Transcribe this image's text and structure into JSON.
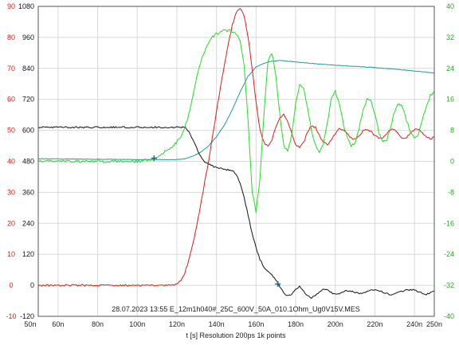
{
  "colors": {
    "red": "#e21b1b",
    "black": "#111111",
    "green": "#22dd22",
    "teal": "#1f9a9a",
    "gridline": "#d8d8d8",
    "frame": "#555555"
  },
  "chart_data": {
    "type": "line",
    "title": "",
    "annotation": "28.07.2023 13:55   E_12m1h040#_25C_600V_50A_010.1Ohm_Ug0V15V.MES",
    "xlabel": "t [s]   Resolution 200ps   1k points",
    "x_unit": "ns",
    "xlim": [
      50,
      250
    ],
    "x_ticks": [
      50,
      60,
      80,
      100,
      120,
      140,
      160,
      180,
      200,
      220,
      240,
      250
    ],
    "x_tick_labels": [
      "50n",
      "60n",
      "80n",
      "100n",
      "120n",
      "140n",
      "160n",
      "180n",
      "200n",
      "220n",
      "240n",
      "250n"
    ],
    "grid": true,
    "axes": {
      "left_red": {
        "range": [
          -10,
          90
        ],
        "ticks": [
          -10,
          0,
          10,
          20,
          30,
          40,
          50,
          60,
          70,
          80,
          90
        ],
        "tick_labels": [
          "-10",
          "0",
          "10",
          "20",
          "30",
          "40",
          "50",
          "60",
          "70",
          "80",
          "90"
        ],
        "color": "#e21b1b"
      },
      "left_black": {
        "range": [
          -120,
          1080
        ],
        "ticks": [
          -120,
          0,
          120,
          240,
          360,
          480,
          600,
          720,
          840,
          960,
          1080
        ],
        "tick_labels": [
          "-120",
          "0",
          "120",
          "240",
          "360",
          "480",
          "600",
          "720",
          "840",
          "960",
          "1080"
        ],
        "color": "#111111"
      },
      "right_green": {
        "range": [
          -40,
          40
        ],
        "ticks": [
          -40,
          -32,
          -24,
          -16,
          -8,
          0,
          8,
          16,
          24,
          32,
          40
        ],
        "tick_labels": [
          "-40",
          "-32",
          "-24",
          "-16",
          "-8",
          "0",
          "8",
          "16",
          "24",
          "32",
          "40"
        ],
        "color": "#22aa22"
      }
    },
    "series": [
      {
        "color": "#e21b1b",
        "axis": "left_red",
        "x": [
          50,
          100,
          118,
          120,
          122,
          124,
          126,
          128,
          130,
          132,
          134,
          136,
          138,
          140,
          142,
          144,
          146,
          148,
          150,
          152,
          154,
          156,
          158,
          160,
          162,
          164,
          166,
          168,
          170,
          172,
          174,
          176,
          178,
          180,
          182,
          184,
          186,
          188,
          190,
          192,
          194,
          196,
          198,
          200,
          202,
          204,
          206,
          208,
          210,
          212,
          214,
          216,
          218,
          220,
          222,
          224,
          226,
          228,
          230,
          232,
          234,
          236,
          238,
          240,
          242,
          244,
          246,
          248,
          250
        ],
        "values": [
          0,
          0,
          0,
          0.3,
          1.5,
          4,
          8,
          13,
          19,
          26,
          33,
          40,
          48,
          56,
          64,
          71,
          78,
          84,
          88,
          89.5,
          87,
          80,
          70,
          59,
          50,
          46,
          45,
          47,
          51,
          54,
          55,
          53,
          49,
          45.5,
          44.5,
          46,
          49.5,
          51.5,
          51,
          48.5,
          46,
          45.5,
          47,
          49,
          50.5,
          50.3,
          48.8,
          47.5,
          47.2,
          48.3,
          49.8,
          50.3,
          49.6,
          48.2,
          47.3,
          47.6,
          49,
          50.2,
          50,
          48.7,
          47.4,
          47.6,
          49,
          50.3,
          50.2,
          49,
          47.8,
          47.3,
          47.8
        ]
      },
      {
        "color": "#111111",
        "axis": "left_black",
        "x": [
          50,
          100,
          120,
          124,
          126,
          128,
          130,
          132,
          134,
          136,
          138,
          140,
          144,
          148,
          150,
          152,
          154,
          156,
          158,
          160,
          162,
          164,
          166,
          168,
          170,
          172,
          174,
          176,
          178,
          180,
          182,
          184,
          186,
          188,
          190,
          192,
          194,
          196,
          198,
          200,
          202,
          204,
          206,
          208,
          210,
          212,
          214,
          216,
          218,
          220,
          222,
          224,
          226,
          228,
          230,
          232,
          234,
          236,
          238,
          240,
          242,
          244,
          246,
          248,
          250
        ],
        "values": [
          612,
          612,
          612,
          612,
          595,
          565,
          530,
          500,
          480,
          470,
          462,
          455,
          450,
          445,
          430,
          395,
          340,
          270,
          200,
          145,
          100,
          70,
          55,
          40,
          20,
          -5,
          -30,
          -42,
          -35,
          -15,
          -5,
          -20,
          -42,
          -48,
          -40,
          -25,
          -15,
          -18,
          -28,
          -35,
          -33,
          -25,
          -20,
          -22,
          -28,
          -32,
          -30,
          -24,
          -18,
          -16,
          -20,
          -26,
          -32,
          -35,
          -33,
          -28,
          -22,
          -18,
          -16,
          -18,
          -24,
          -30,
          -34,
          -30,
          -22
        ]
      },
      {
        "color": "#22dd22",
        "axis": "right_green",
        "x": [
          50,
          60,
          80,
          100,
          104,
          108,
          110,
          114,
          118,
          122,
          124,
          126,
          128,
          130,
          132,
          134,
          136,
          138,
          140,
          142,
          144,
          146,
          148,
          150,
          152,
          154,
          156,
          158,
          160,
          162,
          164,
          166,
          168,
          170,
          172,
          174,
          176,
          178,
          180,
          182,
          184,
          186,
          188,
          190,
          192,
          194,
          196,
          198,
          200,
          202,
          204,
          206,
          208,
          210,
          212,
          214,
          216,
          218,
          220,
          222,
          224,
          226,
          228,
          230,
          232,
          234,
          236,
          238,
          240,
          242,
          244,
          246,
          248,
          250
        ],
        "values": [
          0,
          0,
          0,
          0,
          0.3,
          0.7,
          1.2,
          2.5,
          4,
          6,
          8.5,
          12,
          17,
          21.5,
          25.5,
          28.5,
          30.5,
          32,
          33,
          33.5,
          33.8,
          33.8,
          33.5,
          33,
          31,
          25,
          10,
          -8,
          -13,
          -4,
          12,
          26,
          28,
          22,
          12,
          4,
          2.5,
          7,
          15,
          20,
          19,
          14,
          8,
          4,
          2.5,
          4.5,
          10,
          16,
          18,
          15,
          10,
          6,
          4,
          4.5,
          8.5,
          13,
          16,
          15.5,
          12,
          7.5,
          5,
          5.5,
          9,
          13,
          15,
          14,
          10.5,
          7.5,
          6,
          7,
          10.5,
          14.5,
          17,
          18
        ]
      },
      {
        "color": "#1f9a9a",
        "axis": "left_black",
        "x": [
          50,
          80,
          100,
          110,
          120,
          124,
          128,
          132,
          136,
          140,
          144,
          148,
          152,
          156,
          160,
          164,
          168,
          172,
          176,
          180,
          190,
          200,
          210,
          220,
          230,
          240,
          250
        ],
        "values": [
          490,
          488,
          487,
          487,
          487,
          490,
          500,
          515,
          540,
          575,
          620,
          680,
          750,
          810,
          845,
          860,
          868,
          870,
          868,
          865,
          858,
          852,
          848,
          843,
          837,
          830,
          822
        ]
      }
    ],
    "markers": [
      {
        "series": 2,
        "x": 108.5,
        "value": 0.8,
        "symbol": "+"
      },
      {
        "series": 1,
        "x": 171,
        "value": 5,
        "symbol": "+"
      }
    ]
  }
}
